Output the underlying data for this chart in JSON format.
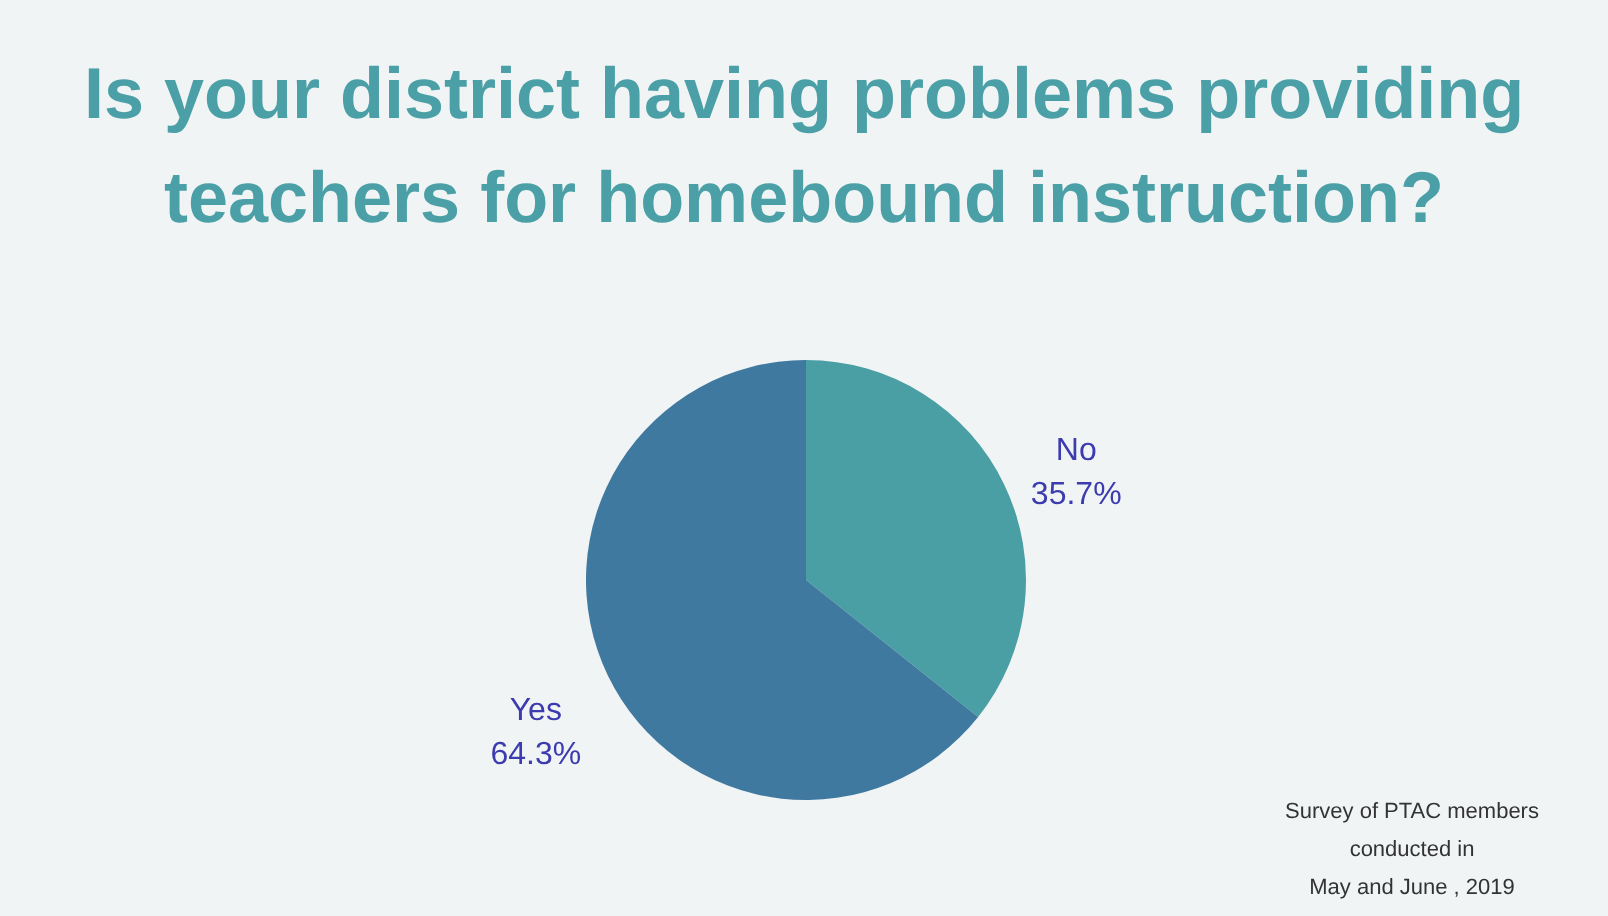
{
  "chart_data": {
    "type": "pie",
    "title": "Is your district having problems providing teachers for homebound instruction?",
    "categories": [
      "No",
      "Yes"
    ],
    "values": [
      35.7,
      64.3
    ],
    "colors": [
      "#4a9fa5",
      "#3f799f"
    ],
    "value_labels": [
      "35.7%",
      "64.3%"
    ],
    "annotations": [
      "Survey of PTAC members conducted in May and June , 2019"
    ]
  }
}
